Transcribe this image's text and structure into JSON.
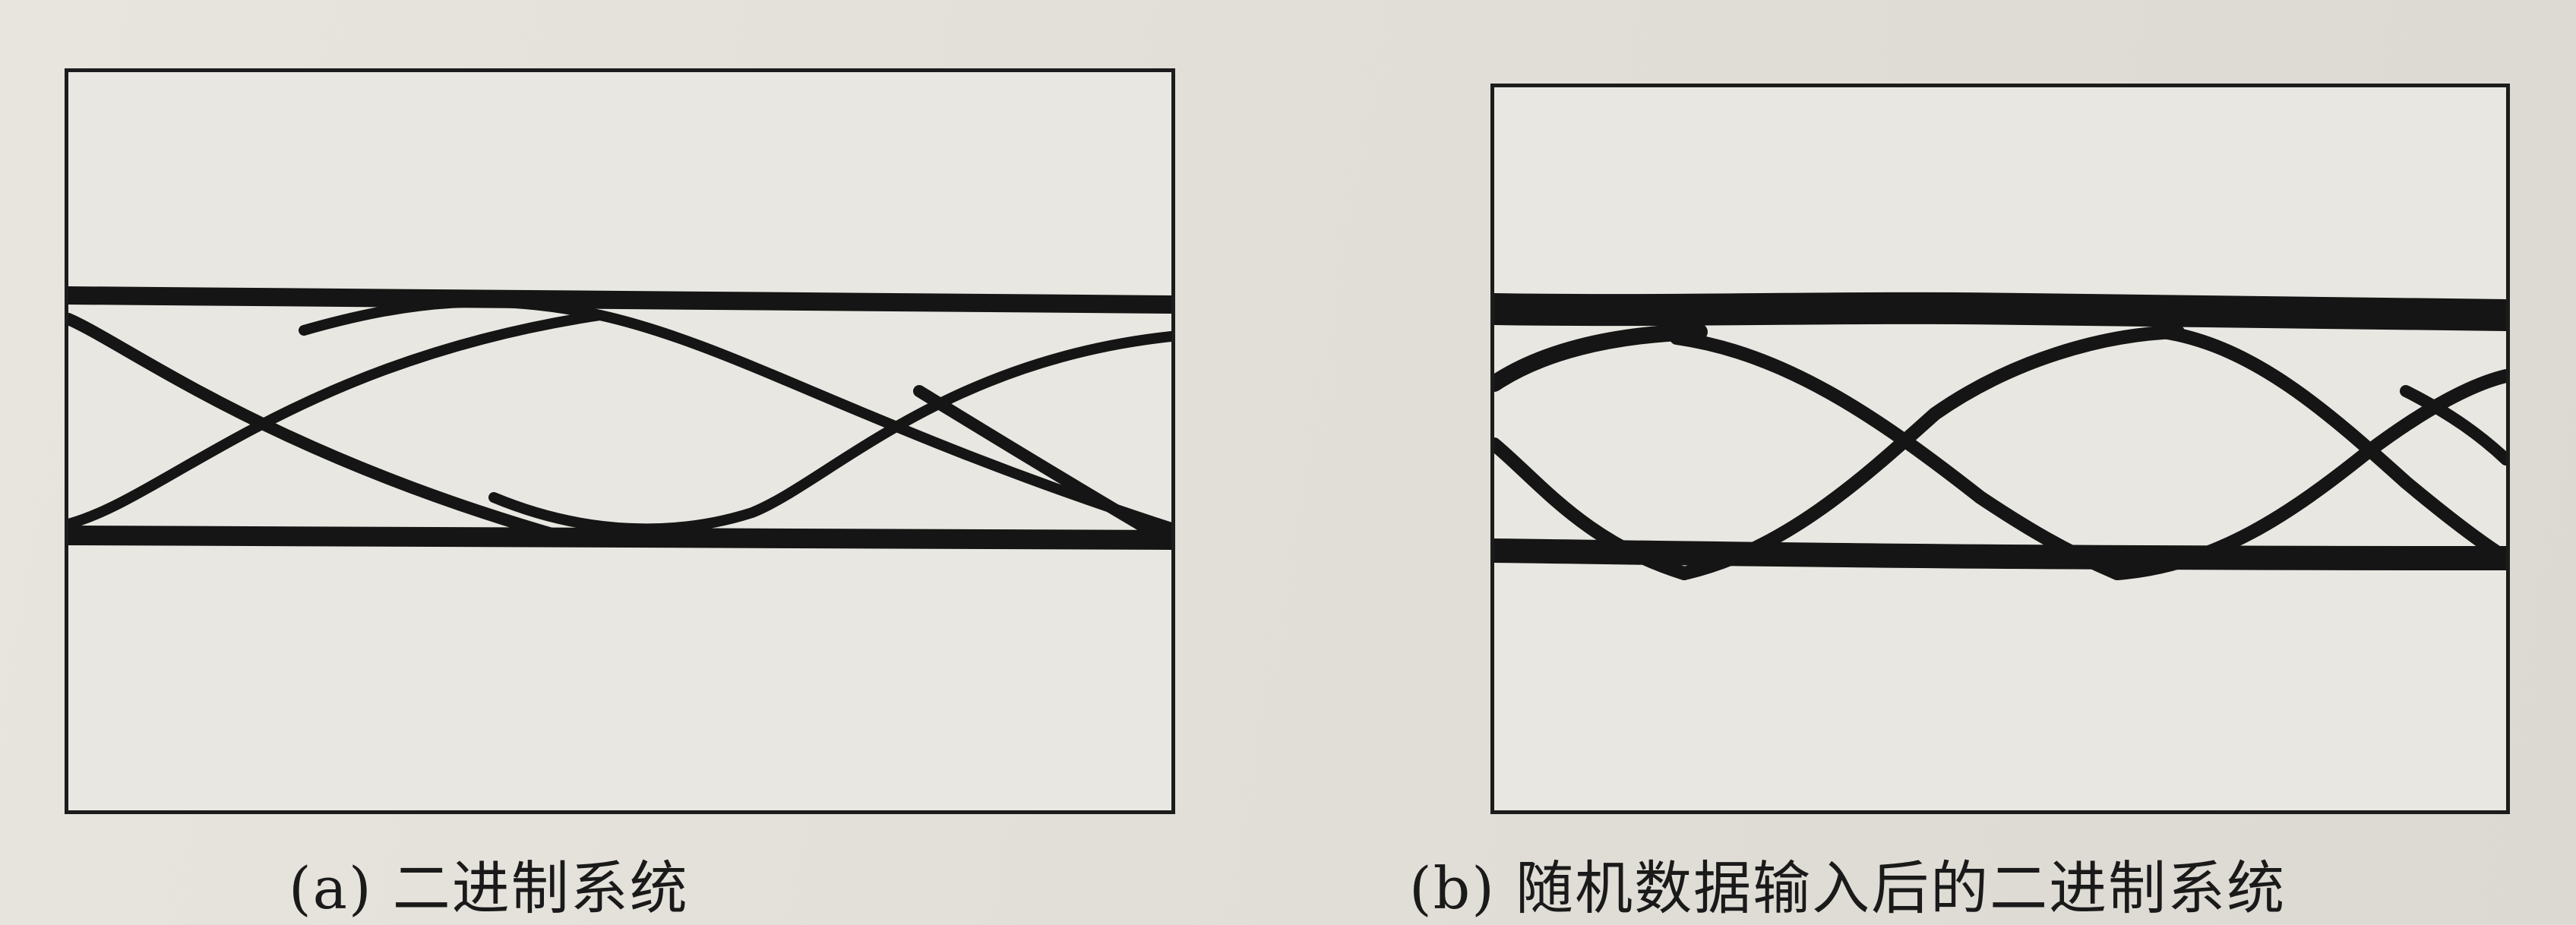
{
  "figure": {
    "panels": [
      {
        "id": "a",
        "caption": "(a) 二进制系统"
      },
      {
        "id": "b",
        "caption": "(b) 随机数据输入后的二进制系统"
      }
    ]
  }
}
